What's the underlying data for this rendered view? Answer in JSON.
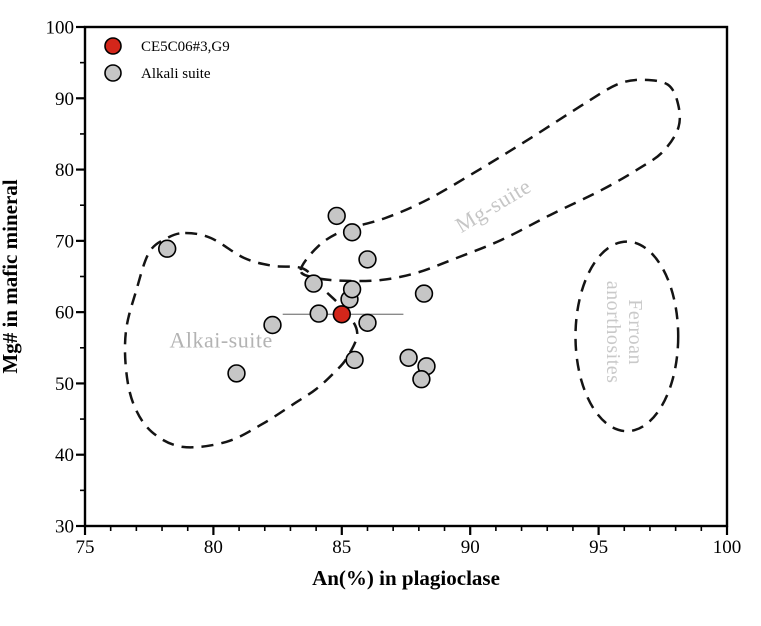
{
  "figure": {
    "background": "#ffffff",
    "frame_color": "#000000"
  },
  "chart_data": {
    "type": "scatter",
    "title": "",
    "xlabel": "An(%) in plagioclase",
    "ylabel": "Mg# in mafic mineral",
    "xlim": [
      75,
      100
    ],
    "ylim": [
      30,
      100
    ],
    "x_major_ticks": [
      "75",
      "80",
      "85",
      "90",
      "95",
      "100"
    ],
    "x_minor_step": 1,
    "y_major_ticks": [
      "30",
      "40",
      "50",
      "60",
      "70",
      "80",
      "90",
      "100"
    ],
    "y_minor_step": 5,
    "grid": false,
    "legend_position": "top-left-inside",
    "series": [
      {
        "name": "CE5C06#3,G9",
        "marker": "circle",
        "marker_color": "#d3261a",
        "marker_edge": "#000000",
        "points": [
          {
            "x": 85.0,
            "y": 59.7,
            "x_lo": 82.7,
            "x_hi": 87.4
          }
        ],
        "error_bar_color": "#8a8a8a"
      },
      {
        "name": "Alkali suite",
        "marker": "circle",
        "marker_color": "#c6c6c6",
        "marker_edge": "#000000",
        "points": [
          [
            78.2,
            68.9
          ],
          [
            80.9,
            51.4
          ],
          [
            82.3,
            58.2
          ],
          [
            83.9,
            64.0
          ],
          [
            84.1,
            59.8
          ],
          [
            84.8,
            73.5
          ],
          [
            85.4,
            71.2
          ],
          [
            85.3,
            61.8
          ],
          [
            85.4,
            63.2
          ],
          [
            86.0,
            67.4
          ],
          [
            86.0,
            58.5
          ],
          [
            85.5,
            53.3
          ],
          [
            87.6,
            53.6
          ],
          [
            88.3,
            52.4
          ],
          [
            88.1,
            50.6
          ],
          [
            88.2,
            62.6
          ]
        ]
      }
    ],
    "regions": [
      {
        "label": "Alkai-suite",
        "label_lines": [
          "Alkai-suite"
        ],
        "label_x": 80.3,
        "label_y": 56.0,
        "label_rotation": 0,
        "label_font_size": 22,
        "label_color": "#b3b3b3",
        "outline_style": "dashed",
        "outline_color": "#141414",
        "shape": "blob",
        "outline": [
          [
            78.9,
            71.1
          ],
          [
            79.9,
            70.4
          ],
          [
            81.2,
            67.6
          ],
          [
            82.3,
            66.5
          ],
          [
            83.5,
            66.1
          ],
          [
            84.2,
            63.5
          ],
          [
            85.1,
            60.3
          ],
          [
            85.6,
            57.1
          ],
          [
            85.2,
            53.6
          ],
          [
            84.7,
            51.5
          ],
          [
            84.0,
            49.2
          ],
          [
            83.2,
            47.3
          ],
          [
            81.9,
            44.3
          ],
          [
            80.5,
            41.8
          ],
          [
            78.8,
            41.1
          ],
          [
            77.6,
            43.2
          ],
          [
            76.9,
            47.0
          ],
          [
            76.6,
            51.9
          ],
          [
            76.6,
            57.5
          ],
          [
            77.0,
            63.1
          ],
          [
            77.5,
            68.4
          ],
          [
            78.2,
            70.4
          ]
        ]
      },
      {
        "label": "Mg-suite",
        "label_lines": [
          "Mg-suite"
        ],
        "label_x": 90.9,
        "label_y": 74.9,
        "label_rotation": -31,
        "label_font_size": 22,
        "label_color": "#c6c6c6",
        "outline_style": "dashed",
        "outline_color": "#141414",
        "shape": "blob",
        "outline": [
          [
            83.4,
            65.9
          ],
          [
            84.1,
            69.3
          ],
          [
            85.1,
            71.5
          ],
          [
            86.7,
            73.2
          ],
          [
            88.4,
            75.9
          ],
          [
            90.4,
            80.1
          ],
          [
            92.3,
            84.3
          ],
          [
            94.3,
            88.9
          ],
          [
            95.7,
            91.9
          ],
          [
            96.7,
            92.6
          ],
          [
            97.7,
            91.9
          ],
          [
            98.1,
            89.1
          ],
          [
            98.1,
            85.8
          ],
          [
            97.5,
            82.5
          ],
          [
            96.6,
            80.2
          ],
          [
            95.1,
            77.1
          ],
          [
            93.1,
            73.6
          ],
          [
            91.2,
            70.1
          ],
          [
            89.4,
            67.5
          ],
          [
            87.9,
            65.5
          ],
          [
            86.5,
            64.5
          ],
          [
            85.1,
            64.4
          ],
          [
            84.0,
            64.8
          ]
        ]
      },
      {
        "label": "Ferroan anorthosites",
        "label_lines": [
          "Ferroan",
          "anorthosites"
        ],
        "label_x": 96.0,
        "label_y": 57.2,
        "label_rotation": 90,
        "label_font_size": 20,
        "label_color": "#c9c9c9",
        "outline_style": "dashed",
        "outline_color": "#141414",
        "shape": "ellipse",
        "ellipse": {
          "cx": 96.1,
          "cy": 56.6,
          "rx": 2.0,
          "ry": 13.3
        }
      }
    ]
  }
}
